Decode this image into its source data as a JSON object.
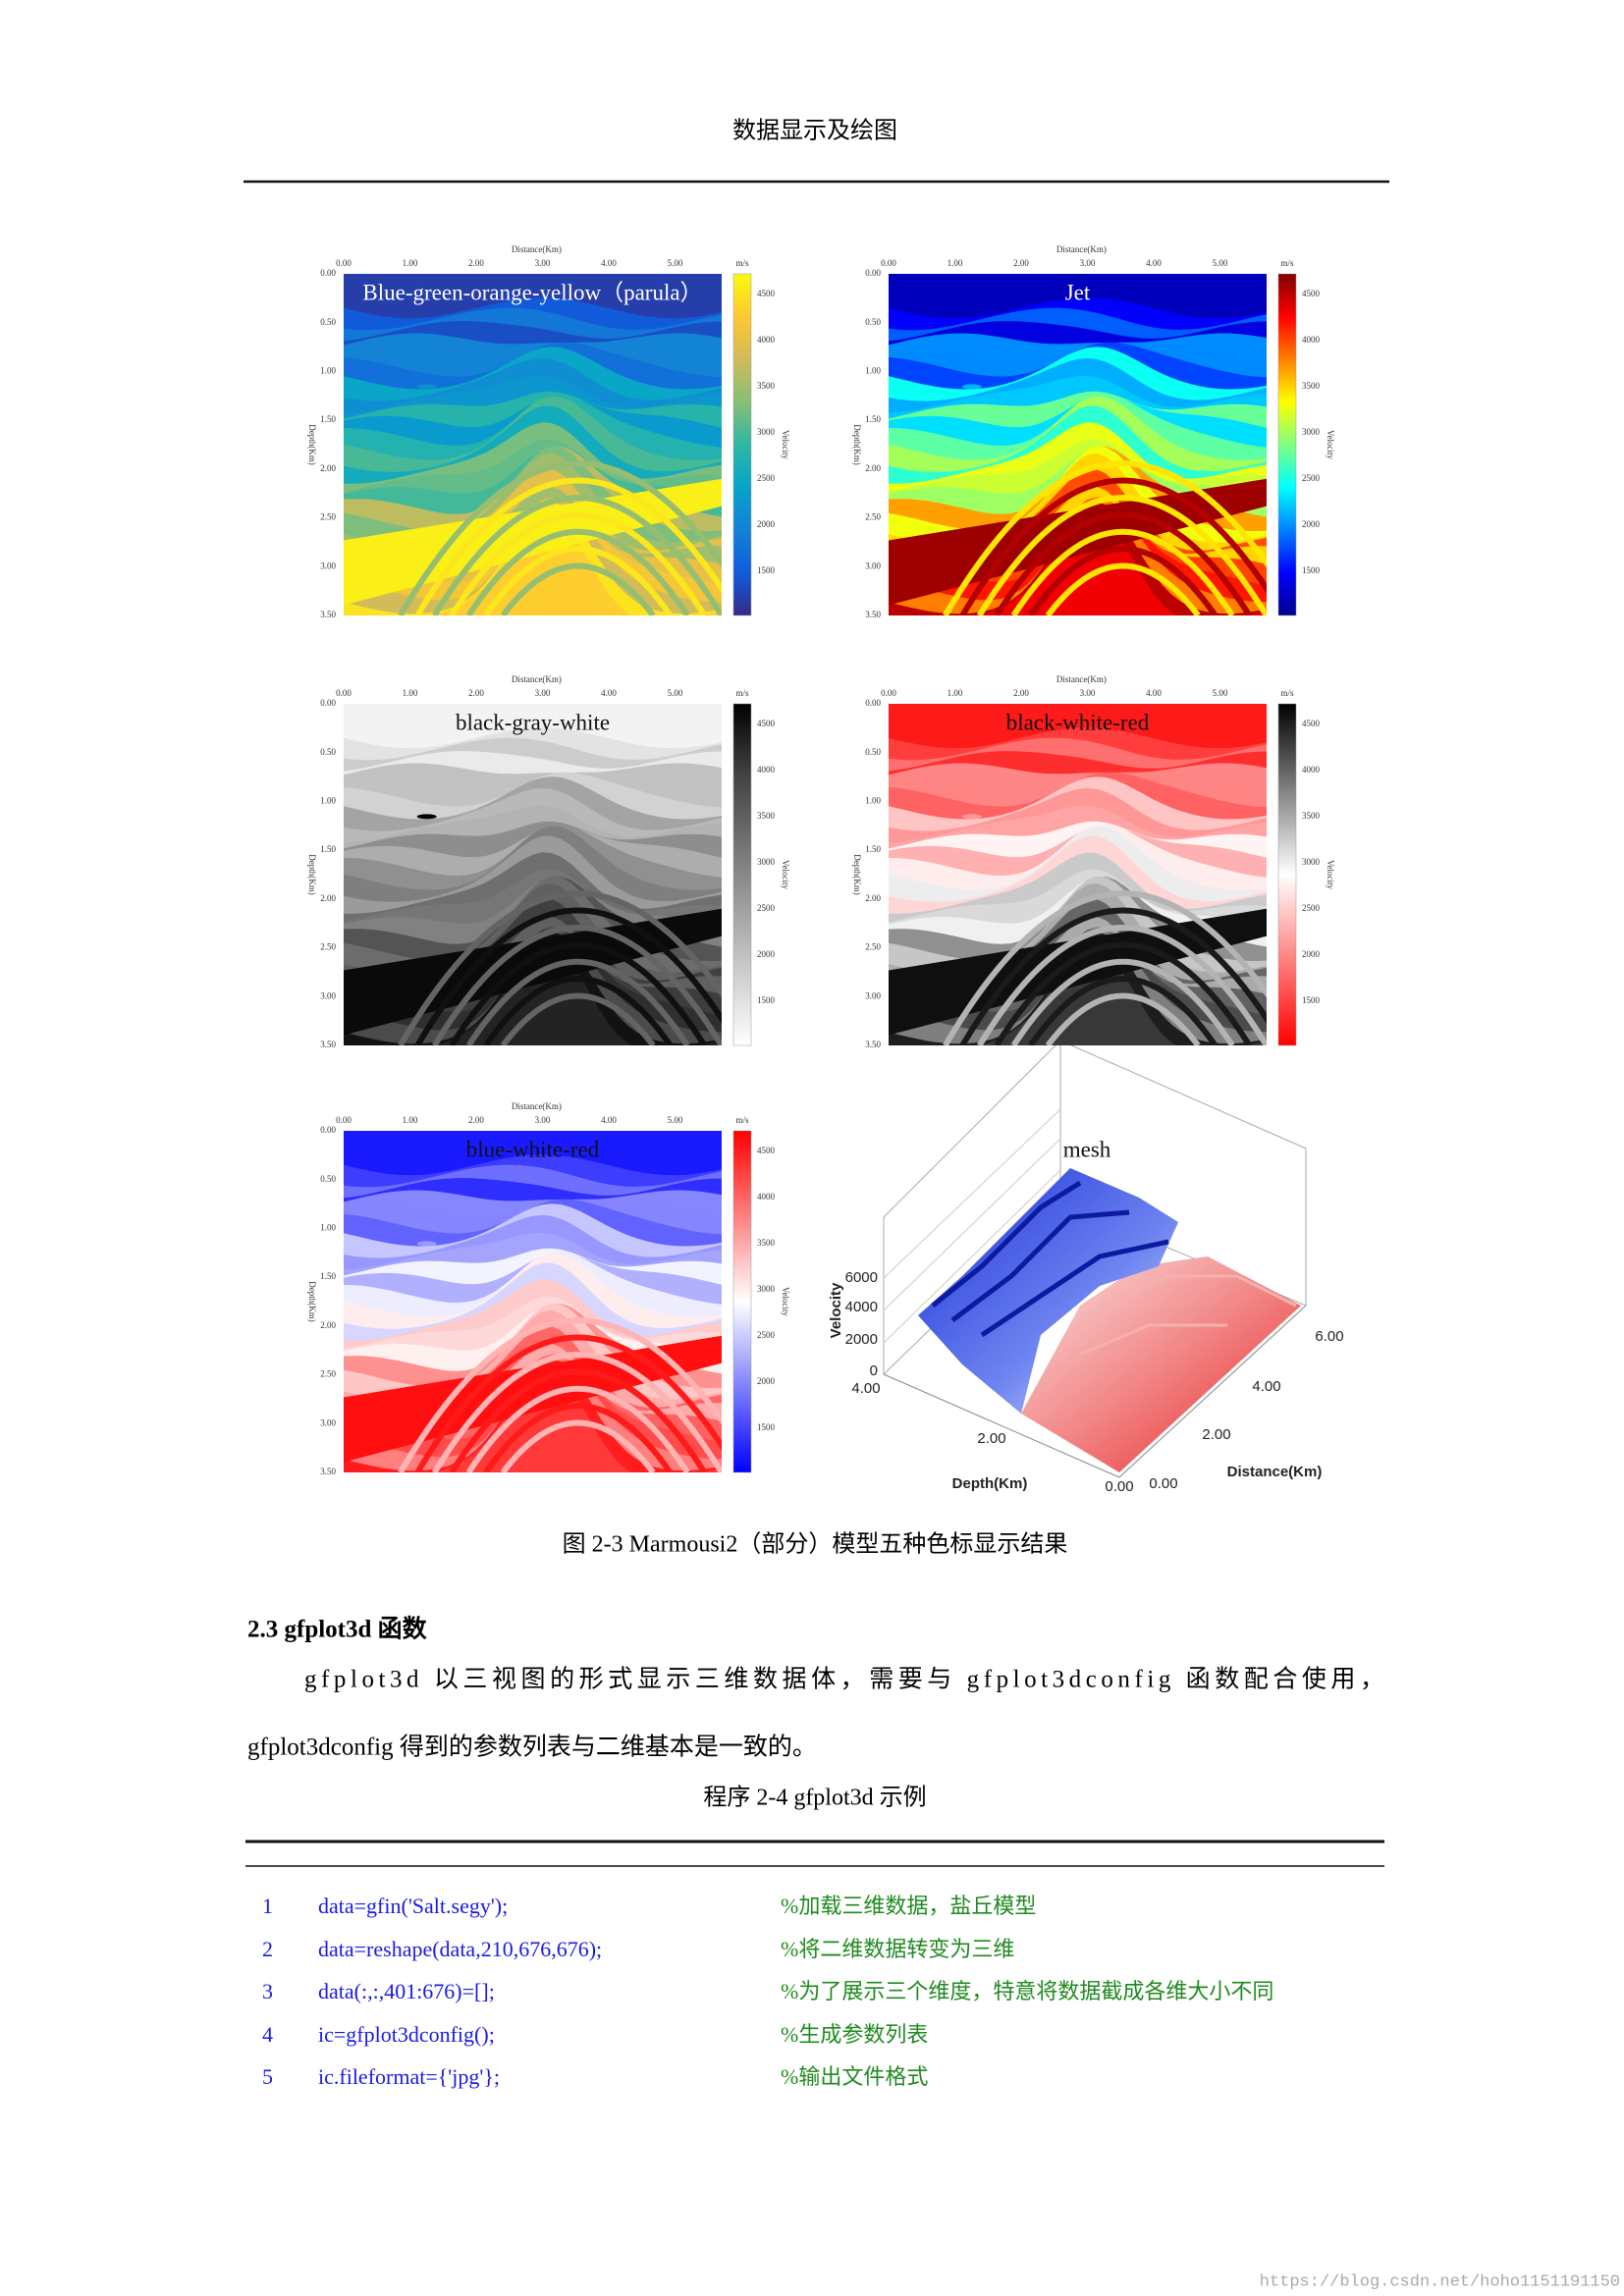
{
  "header": {
    "title": "数据显示及绘图"
  },
  "figure": {
    "panels": [
      {
        "label": "Blue-green-orange-yellow（parula）"
      },
      {
        "label": "Jet"
      },
      {
        "label": "black-gray-white"
      },
      {
        "label": "black-white-red"
      },
      {
        "label": "blue-white-red"
      }
    ],
    "x_axis_label": "Distance(Km)",
    "y_axis_label": "Depth(Km)",
    "x_ticks": [
      "0.00",
      "1.00",
      "2.00",
      "3.00",
      "4.00",
      "5.00"
    ],
    "y_ticks": [
      "0.00",
      "0.50",
      "1.00",
      "1.50",
      "2.00",
      "2.50",
      "3.00",
      "3.50"
    ],
    "colorbar_unit": "m/s",
    "colorbar_label": "Velocity",
    "colorbar_ticks": [
      "4500",
      "4000",
      "3500",
      "3000",
      "2500",
      "2000",
      "1500"
    ],
    "mesh": {
      "label": "mesh",
      "z_label": "Velocity",
      "z_ticks": [
        "6000",
        "4000",
        "2000",
        "0"
      ],
      "depth_label": "Depth(Km)",
      "depth_ticks": [
        "4.00",
        "2.00",
        "0.00"
      ],
      "distance_label": "Distance(Km)",
      "distance_ticks": [
        "0.00",
        "2.00",
        "4.00",
        "6.00"
      ]
    },
    "caption": "图 2-3 Marmousi2（部分）模型五种色标显示结果"
  },
  "section": {
    "heading": "2.3  gfplot3d 函数",
    "paragraph_lines": [
      "gfplot3d 以三视图的形式显示三维数据体，需要与 gfplot3dconfig 函数配合使用，",
      "gfplot3dconfig 得到的参数列表与二维基本是一致的。"
    ]
  },
  "listing": {
    "caption": "程序 2-4 gfplot3d 示例",
    "lines": [
      {
        "number": "1",
        "code": "data=gfin('Salt.segy');",
        "comment": "%加载三维数据，盐丘模型"
      },
      {
        "number": "2",
        "code": "data=reshape(data,210,676,676);",
        "comment": "%将二维数据转变为三维"
      },
      {
        "number": "3",
        "code": "data(:,:,401:676)=[];",
        "comment": "%为了展示三个维度，特意将数据截成各维大小不同"
      },
      {
        "number": "4",
        "code": "ic=gfplot3dconfig();",
        "comment": "%生成参数列表"
      },
      {
        "number": "5",
        "code": "ic.fileformat={'jpg'};",
        "comment": "%输出文件格式"
      }
    ]
  },
  "watermark": "https://blog.csdn.net/hoho1151191150"
}
